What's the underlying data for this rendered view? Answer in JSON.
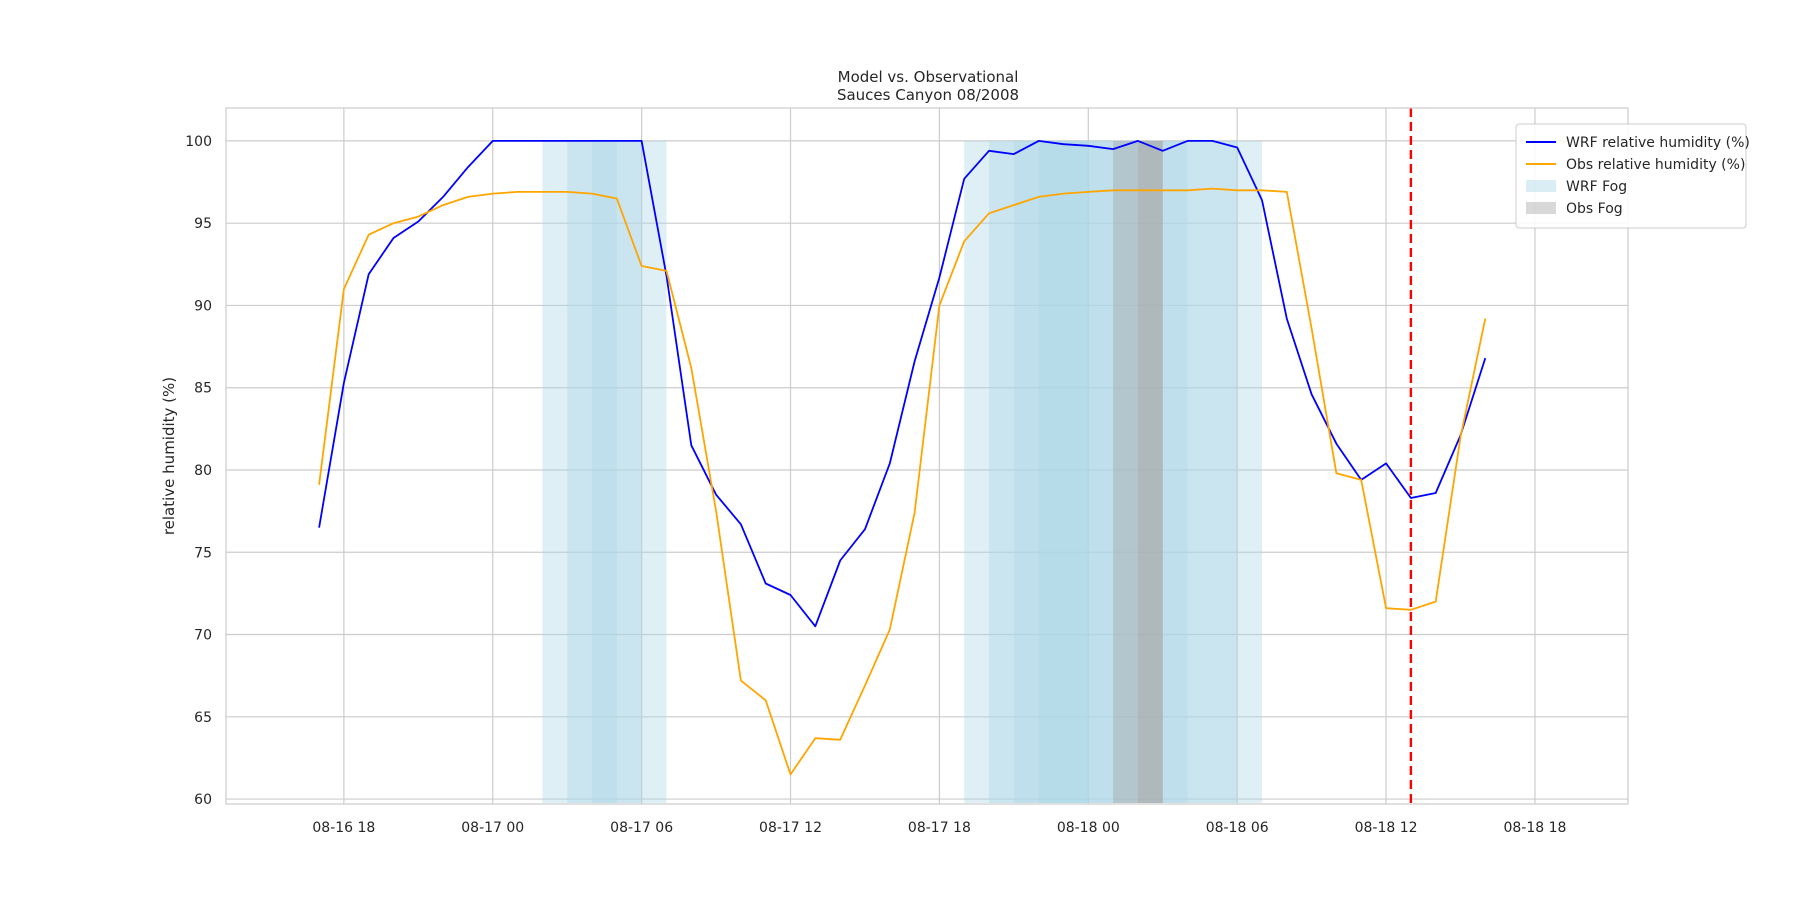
{
  "chart_data": {
    "type": "line",
    "title": "Model vs. Observational",
    "subtitle": "Sauces Canyon 08/2008",
    "ylabel": "relative humidity (%)",
    "xlabel": "",
    "xlim": [
      "2008-08-16 13:15",
      "2008-08-18 21:45"
    ],
    "ylim": [
      59.7,
      102.0
    ],
    "x_ticks": [
      {
        "time": "2008-08-16 18:00",
        "label": "08-16 18"
      },
      {
        "time": "2008-08-17 00:00",
        "label": "08-17 00"
      },
      {
        "time": "2008-08-17 06:00",
        "label": "08-17 06"
      },
      {
        "time": "2008-08-17 12:00",
        "label": "08-17 12"
      },
      {
        "time": "2008-08-17 18:00",
        "label": "08-17 18"
      },
      {
        "time": "2008-08-18 00:00",
        "label": "08-18 00"
      },
      {
        "time": "2008-08-18 06:00",
        "label": "08-18 06"
      },
      {
        "time": "2008-08-18 12:00",
        "label": "08-18 12"
      },
      {
        "time": "2008-08-18 18:00",
        "label": "08-18 18"
      }
    ],
    "y_ticks": [
      60,
      65,
      70,
      75,
      80,
      85,
      90,
      95,
      100
    ],
    "grid": true,
    "legend_position": "top-right",
    "series": [
      {
        "name": "WRF relative humidity (%)",
        "color": "#0000ff",
        "x": [
          "2008-08-16 17:00",
          "2008-08-16 18:00",
          "2008-08-16 19:00",
          "2008-08-16 20:00",
          "2008-08-16 21:00",
          "2008-08-16 22:00",
          "2008-08-16 23:00",
          "2008-08-17 00:00",
          "2008-08-17 01:00",
          "2008-08-17 02:00",
          "2008-08-17 03:00",
          "2008-08-17 04:00",
          "2008-08-17 05:00",
          "2008-08-17 06:00",
          "2008-08-17 07:00",
          "2008-08-17 08:00",
          "2008-08-17 09:00",
          "2008-08-17 10:00",
          "2008-08-17 11:00",
          "2008-08-17 12:00",
          "2008-08-17 13:00",
          "2008-08-17 14:00",
          "2008-08-17 15:00",
          "2008-08-17 16:00",
          "2008-08-17 17:00",
          "2008-08-17 18:00",
          "2008-08-17 19:00",
          "2008-08-17 20:00",
          "2008-08-17 21:00",
          "2008-08-17 22:00",
          "2008-08-17 23:00",
          "2008-08-18 00:00",
          "2008-08-18 01:00",
          "2008-08-18 02:00",
          "2008-08-18 03:00",
          "2008-08-18 04:00",
          "2008-08-18 05:00",
          "2008-08-18 06:00",
          "2008-08-18 07:00",
          "2008-08-18 08:00",
          "2008-08-18 09:00",
          "2008-08-18 10:00",
          "2008-08-18 11:00",
          "2008-08-18 12:00",
          "2008-08-18 13:00",
          "2008-08-18 14:00",
          "2008-08-18 15:00",
          "2008-08-18 16:00"
        ],
        "values": [
          76.5,
          85.3,
          91.9,
          94.1,
          95.1,
          96.6,
          98.4,
          100.0,
          100.0,
          100.0,
          100.0,
          100.0,
          100.0,
          100.0,
          91.8,
          81.5,
          78.5,
          76.7,
          73.1,
          72.4,
          70.5,
          74.5,
          76.4,
          80.4,
          86.6,
          91.7,
          97.7,
          99.4,
          99.2,
          100.0,
          99.8,
          99.7,
          99.5,
          100.0,
          99.4,
          100.0,
          100.0,
          99.6,
          96.4,
          89.2,
          84.6,
          81.6,
          79.4,
          80.4,
          78.3,
          78.6,
          82.1,
          86.8
        ]
      },
      {
        "name": "Obs relative humidity (%)",
        "color": "#ffa500",
        "x": [
          "2008-08-16 17:00",
          "2008-08-16 18:00",
          "2008-08-16 19:00",
          "2008-08-16 20:00",
          "2008-08-16 21:00",
          "2008-08-16 22:00",
          "2008-08-16 23:00",
          "2008-08-17 00:00",
          "2008-08-17 01:00",
          "2008-08-17 02:00",
          "2008-08-17 03:00",
          "2008-08-17 04:00",
          "2008-08-17 05:00",
          "2008-08-17 06:00",
          "2008-08-17 07:00",
          "2008-08-17 08:00",
          "2008-08-17 09:00",
          "2008-08-17 10:00",
          "2008-08-17 11:00",
          "2008-08-17 12:00",
          "2008-08-17 13:00",
          "2008-08-17 14:00",
          "2008-08-17 15:00",
          "2008-08-17 16:00",
          "2008-08-17 17:00",
          "2008-08-17 18:00",
          "2008-08-17 19:00",
          "2008-08-17 20:00",
          "2008-08-17 21:00",
          "2008-08-17 22:00",
          "2008-08-17 23:00",
          "2008-08-18 00:00",
          "2008-08-18 01:00",
          "2008-08-18 02:00",
          "2008-08-18 03:00",
          "2008-08-18 04:00",
          "2008-08-18 05:00",
          "2008-08-18 06:00",
          "2008-08-18 07:00",
          "2008-08-18 08:00",
          "2008-08-18 09:00",
          "2008-08-18 10:00",
          "2008-08-18 11:00",
          "2008-08-18 12:00",
          "2008-08-18 13:00",
          "2008-08-18 14:00",
          "2008-08-18 15:00",
          "2008-08-18 16:00"
        ],
        "values": [
          79.1,
          91.0,
          94.3,
          95.0,
          95.4,
          96.1,
          96.6,
          96.8,
          96.9,
          96.9,
          96.9,
          96.8,
          96.5,
          92.4,
          92.1,
          86.2,
          77.5,
          67.2,
          66.0,
          61.5,
          63.7,
          63.6,
          66.9,
          70.3,
          77.4,
          90.0,
          93.9,
          95.6,
          96.1,
          96.6,
          96.8,
          96.9,
          97.0,
          97.0,
          97.0,
          97.0,
          97.1,
          97.0,
          97.0,
          96.9,
          88.6,
          79.8,
          79.4,
          71.6,
          71.5,
          72.0,
          82.0,
          89.2
        ]
      }
    ],
    "wrf_fog_color": "#add8e6",
    "obs_fog_color": "#a9a9a9",
    "wrf_fog_intervals": [
      [
        "2008-08-17 02:00",
        "2008-08-17 07:00"
      ],
      [
        "2008-08-17 03:00",
        "2008-08-17 06:00"
      ],
      [
        "2008-08-17 04:00",
        "2008-08-17 05:00"
      ],
      [
        "2008-08-17 19:00",
        "2008-08-18 07:00"
      ],
      [
        "2008-08-17 20:00",
        "2008-08-18 06:00"
      ],
      [
        "2008-08-17 21:00",
        "2008-08-18 04:00"
      ],
      [
        "2008-08-17 22:00",
        "2008-08-18 00:00"
      ]
    ],
    "obs_fog_intervals": [
      [
        "2008-08-18 01:00",
        "2008-08-18 02:00"
      ],
      [
        "2008-08-18 02:00",
        "2008-08-18 03:00"
      ],
      [
        "2008-08-18 02:00",
        "2008-08-18 03:00"
      ]
    ],
    "vline": {
      "time": "2008-08-18 13:00",
      "color": "#ff0000",
      "style": "dashed"
    },
    "legend": [
      {
        "label": "WRF relative humidity (%)",
        "kind": "line",
        "color": "#0000ff"
      },
      {
        "label": "Obs relative humidity (%)",
        "kind": "line",
        "color": "#ffa500"
      },
      {
        "label": "WRF Fog",
        "kind": "patch",
        "color": "#add8e6"
      },
      {
        "label": "Obs Fog",
        "kind": "patch",
        "color": "#a9a9a9"
      }
    ]
  }
}
